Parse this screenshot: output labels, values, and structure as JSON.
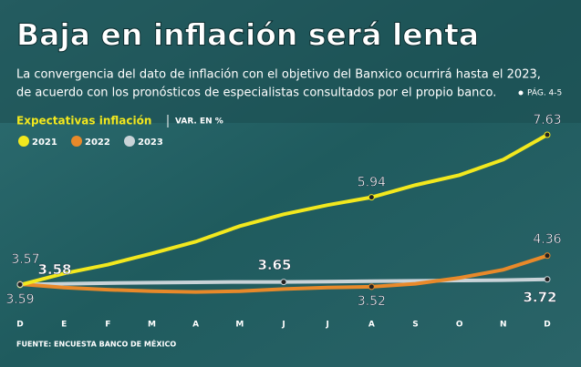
{
  "chart_data": {
    "type": "line",
    "title": "Baja en inflación será lenta",
    "subtitle": [
      "La convergencia del dato de inflación con el objetivo del Banxico ocurrirá hasta el 2023,",
      "de acuerdo con los pronósticos de especialistas consultados por el propio banco."
    ],
    "page_ref": "PÁG. 4-5",
    "chart_label": "Expectativas inflación",
    "unit_label": "VAR. EN %",
    "source": "FUENTE: ENCUESTA BANCO DE MÉXICO",
    "categories": [
      "D",
      "E",
      "F",
      "M",
      "A",
      "M",
      "J",
      "J",
      "A",
      "S",
      "O",
      "N",
      "D"
    ],
    "ylim": [
      3,
      8
    ],
    "series": [
      {
        "name": "2021",
        "color": "#f2e81e",
        "values": [
          3.57,
          3.88,
          4.12,
          4.42,
          4.74,
          5.16,
          5.48,
          5.73,
          5.94,
          6.27,
          6.54,
          6.96,
          7.63
        ],
        "labels_at": [
          0,
          8,
          12
        ]
      },
      {
        "name": "2022",
        "color": "#e8892a",
        "values": [
          3.59,
          3.5,
          3.44,
          3.4,
          3.38,
          3.4,
          3.46,
          3.5,
          3.52,
          3.6,
          3.76,
          3.98,
          4.36
        ],
        "labels_at": [
          0,
          8,
          12
        ]
      },
      {
        "name": "2023",
        "color": "#c9d3d8",
        "values": [
          3.58,
          3.6,
          3.62,
          3.63,
          3.64,
          3.65,
          3.65,
          3.66,
          3.67,
          3.68,
          3.69,
          3.7,
          3.72
        ],
        "labels_at": [
          0,
          6,
          12
        ]
      }
    ]
  }
}
